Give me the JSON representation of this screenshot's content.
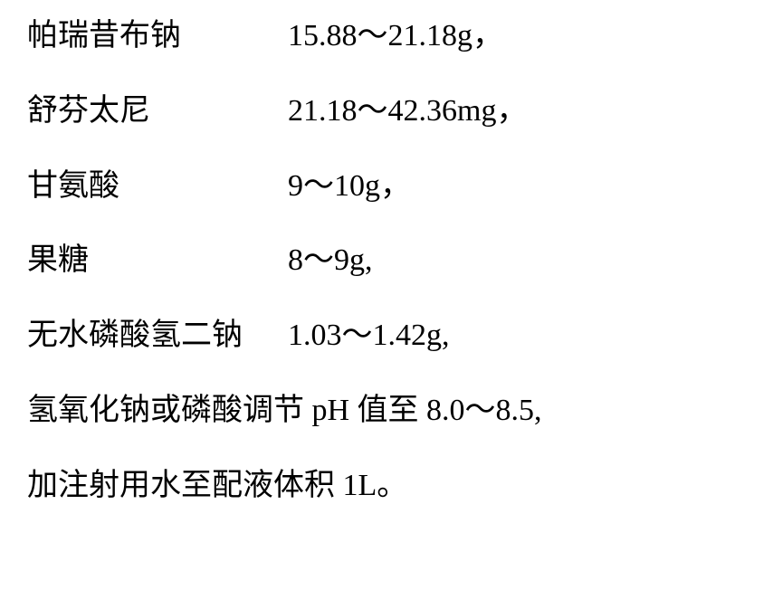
{
  "rows": [
    {
      "label": "帕瑞昔布钠",
      "value": "15.88～21.18g，"
    },
    {
      "label": "舒芬太尼",
      "value": "21.18～42.36mg，"
    },
    {
      "label": "甘氨酸",
      "value": "9～10g，"
    },
    {
      "label": "果糖",
      "value": "8～9g,"
    },
    {
      "label": "无水磷酸氢二钠",
      "value": "1.03～1.42g,"
    }
  ],
  "line6": "氢氧化钠或磷酸调节 pH 值至 8.0～8.5,",
  "line7": "加注射用水至配液体积 1L。"
}
